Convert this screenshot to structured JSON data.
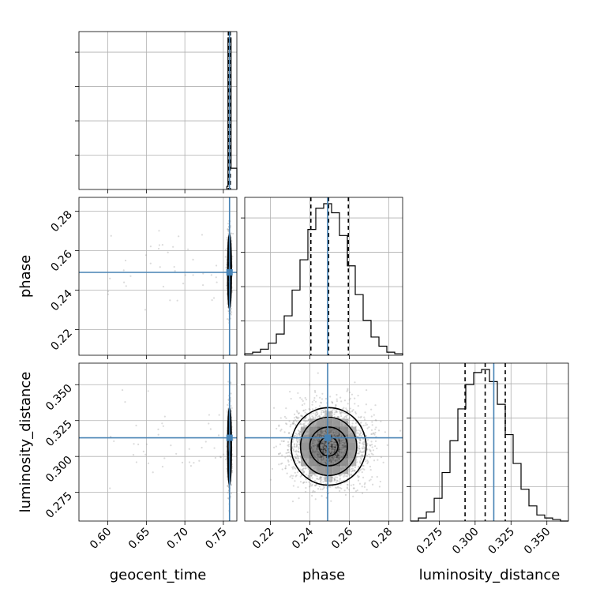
{
  "chart_data": {
    "type": "corner",
    "parameters": [
      "geocent_time",
      "phase",
      "luminosity_distance"
    ],
    "truths": {
      "geocent_time": 0.758,
      "phase": 0.249,
      "luminosity_distance": 0.313
    },
    "quantiles": {
      "geocent_time": [
        0.7565,
        0.758,
        0.759
      ],
      "phase": [
        0.2405,
        0.2495,
        0.2595
      ],
      "luminosity_distance": [
        0.293,
        0.307,
        0.321
      ]
    },
    "ranges": {
      "geocent_time": [
        0.5625,
        0.7675
      ],
      "phase": [
        0.207,
        0.287
      ],
      "luminosity_distance": [
        0.255,
        0.365
      ]
    },
    "ticks": {
      "geocent_time": [
        "0.60",
        "0.65",
        "0.70",
        "0.75"
      ],
      "phase": [
        "0.22",
        "0.24",
        "0.26",
        "0.28"
      ],
      "luminosity_distance": [
        "0.275",
        "0.300",
        "0.325",
        "0.350"
      ]
    },
    "histograms": {
      "phase": {
        "edges": [
          0.207,
          0.211,
          0.215,
          0.219,
          0.223,
          0.227,
          0.231,
          0.235,
          0.239,
          0.243,
          0.247,
          0.251,
          0.255,
          0.259,
          0.263,
          0.267,
          0.271,
          0.275,
          0.279,
          0.283,
          0.287
        ],
        "counts": [
          0.01,
          0.02,
          0.04,
          0.08,
          0.14,
          0.26,
          0.43,
          0.63,
          0.83,
          0.97,
          1.0,
          0.94,
          0.79,
          0.59,
          0.4,
          0.23,
          0.12,
          0.06,
          0.02,
          0.01
        ]
      },
      "luminosity_distance": {
        "edges": [
          0.255,
          0.2605,
          0.266,
          0.2715,
          0.277,
          0.2825,
          0.288,
          0.2935,
          0.299,
          0.3045,
          0.31,
          0.3155,
          0.321,
          0.3265,
          0.332,
          0.3375,
          0.343,
          0.3485,
          0.354,
          0.3595,
          0.365
        ],
        "counts": [
          0.0,
          0.02,
          0.06,
          0.15,
          0.32,
          0.53,
          0.74,
          0.9,
          0.98,
          1.0,
          0.92,
          0.77,
          0.57,
          0.38,
          0.21,
          0.1,
          0.04,
          0.02,
          0.01,
          0.0
        ]
      },
      "geocent_time": {
        "edges": [
          0.7545,
          0.756,
          0.76,
          0.7675
        ],
        "counts": [
          0.02,
          1.0,
          0.14
        ]
      }
    },
    "grid": true
  }
}
